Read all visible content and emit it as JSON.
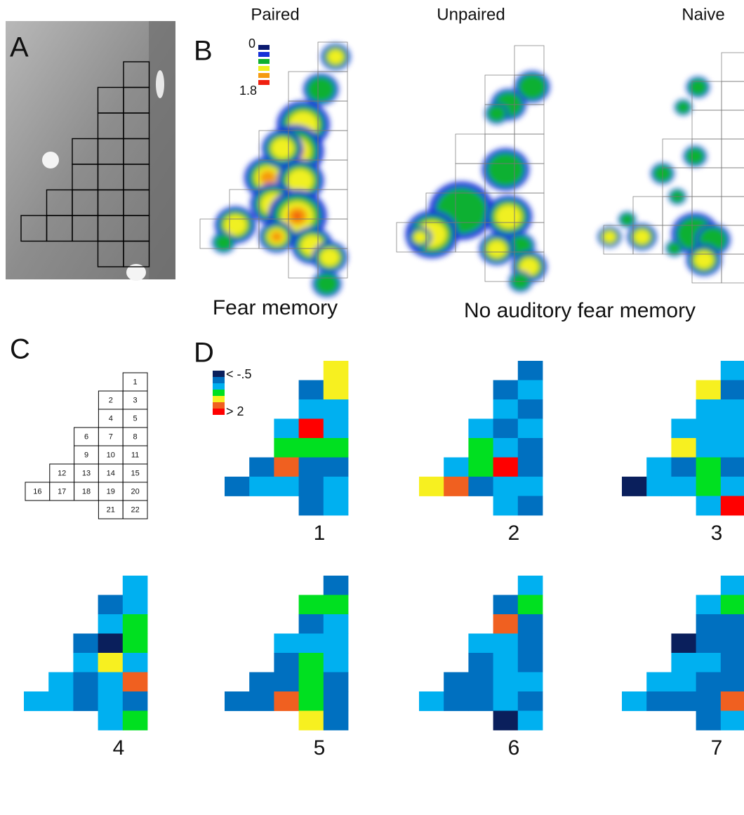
{
  "panel_labels": [
    "A",
    "B",
    "C",
    "D"
  ],
  "conditions": [
    "Paired",
    "Unpaired",
    "Naive"
  ],
  "density_scale": {
    "min": 0,
    "max": 1.8,
    "colors": [
      "#0a1a70",
      "#1530d8",
      "#10b030",
      "#f0f020",
      "#f59a10",
      "#f02010"
    ]
  },
  "groups": [
    "Fear memory",
    "No auditory fear memory"
  ],
  "zscore_legend": {
    "low": "< -.5",
    "high": "> 2",
    "colors": [
      "#0a1f5c",
      "#0070c0",
      "#00b0f0",
      "#00e020",
      "#f7f020",
      "#f06020",
      "#ff0000"
    ]
  },
  "region_numbers": [
    1,
    2,
    3,
    4,
    5,
    6,
    7,
    8,
    9,
    10,
    11,
    12,
    13,
    14,
    15,
    16,
    17,
    18,
    19,
    20,
    21,
    22
  ],
  "maps": [
    {
      "label": 1,
      "cells": [
        "#f7f020",
        "#0070c0",
        "#f7f020",
        "#00b0f0",
        "#00b0f0",
        "#00b0f0",
        "#ff0000",
        "#00b0f0",
        "#00e020",
        "#00e020",
        "#00e020",
        "#0070c0",
        "#f06020",
        "#0070c0",
        "#0070c0",
        "#0070c0",
        "#00b0f0",
        "#00b0f0",
        "#0070c0",
        "#00b0f0",
        "#0070c0",
        "#00b0f0"
      ]
    },
    {
      "label": 2,
      "cells": [
        "#0070c0",
        "#0070c0",
        "#00b0f0",
        "#00b0f0",
        "#0070c0",
        "#00b0f0",
        "#0070c0",
        "#00b0f0",
        "#00e020",
        "#00b0f0",
        "#0070c0",
        "#00b0f0",
        "#00e020",
        "#ff0000",
        "#0070c0",
        "#f7f020",
        "#f06020",
        "#0070c0",
        "#00b0f0",
        "#00b0f0",
        "#00b0f0",
        "#0070c0"
      ]
    },
    {
      "label": 3,
      "cells": [
        "#00b0f0",
        "#f7f020",
        "#0070c0",
        "#00b0f0",
        "#00b0f0",
        "#00b0f0",
        "#00b0f0",
        "#00b0f0",
        "#f7f020",
        "#00b0f0",
        "#00b0f0",
        "#00b0f0",
        "#0070c0",
        "#00e020",
        "#0070c0",
        "#0a1f5c",
        "#00b0f0",
        "#00b0f0",
        "#00e020",
        "#00b0f0",
        "#00b0f0",
        "#ff0000"
      ]
    },
    {
      "label": 4,
      "cells": [
        "#00b0f0",
        "#0070c0",
        "#00b0f0",
        "#00b0f0",
        "#00e020",
        "#0070c0",
        "#0a1f5c",
        "#00e020",
        "#00b0f0",
        "#f7f020",
        "#00b0f0",
        "#00b0f0",
        "#0070c0",
        "#00b0f0",
        "#f06020",
        "#00b0f0",
        "#00b0f0",
        "#0070c0",
        "#00b0f0",
        "#0070c0",
        "#00b0f0",
        "#00e020"
      ]
    },
    {
      "label": 5,
      "cells": [
        "#0070c0",
        "#00e020",
        "#00e020",
        "#0070c0",
        "#00b0f0",
        "#00b0f0",
        "#00b0f0",
        "#00b0f0",
        "#0070c0",
        "#00e020",
        "#00b0f0",
        "#0070c0",
        "#0070c0",
        "#00e020",
        "#0070c0",
        "#0070c0",
        "#0070c0",
        "#f06020",
        "#00e020",
        "#0070c0",
        "#f7f020",
        "#0070c0"
      ]
    },
    {
      "label": 6,
      "cells": [
        "#00b0f0",
        "#0070c0",
        "#00e020",
        "#f06020",
        "#0070c0",
        "#00b0f0",
        "#00b0f0",
        "#0070c0",
        "#0070c0",
        "#00b0f0",
        "#0070c0",
        "#0070c0",
        "#0070c0",
        "#00b0f0",
        "#00b0f0",
        "#00b0f0",
        "#0070c0",
        "#0070c0",
        "#00b0f0",
        "#0070c0",
        "#0a1f5c",
        "#00b0f0"
      ]
    },
    {
      "label": 7,
      "cells": [
        "#00b0f0",
        "#00b0f0",
        "#00e020",
        "#0070c0",
        "#0070c0",
        "#0a1f5c",
        "#0070c0",
        "#0070c0",
        "#00b0f0",
        "#00b0f0",
        "#0070c0",
        "#00b0f0",
        "#00b0f0",
        "#0070c0",
        "#0070c0",
        "#00b0f0",
        "#0070c0",
        "#0070c0",
        "#0070c0",
        "#f06020",
        "#0070c0",
        "#00b0f0"
      ]
    }
  ]
}
